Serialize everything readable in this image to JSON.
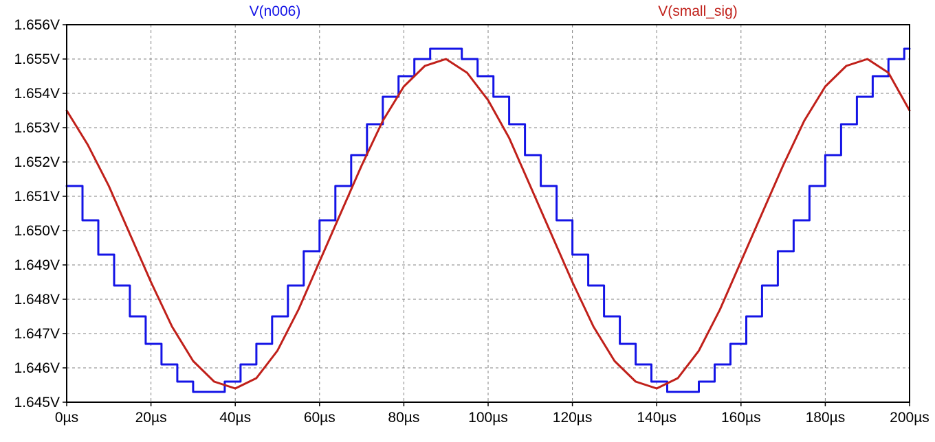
{
  "chart_data": {
    "type": "line",
    "title": "",
    "xlabel": "",
    "ylabel": "",
    "xlim": [
      0,
      200
    ],
    "ylim": [
      1.645,
      1.656
    ],
    "x_unit": "µs",
    "y_unit": "V",
    "grid": true,
    "legend_position": "top",
    "x_ticks": [
      "0µs",
      "20µs",
      "40µs",
      "60µs",
      "80µs",
      "100µs",
      "120µs",
      "140µs",
      "160µs",
      "180µs",
      "200µs"
    ],
    "y_ticks": [
      "1.656V",
      "1.655V",
      "1.654V",
      "1.653V",
      "1.652V",
      "1.651V",
      "1.650V",
      "1.649V",
      "1.648V",
      "1.647V",
      "1.646V",
      "1.645V"
    ],
    "series": [
      {
        "name": "V(n006)",
        "color": "#1414e6",
        "step": true,
        "x": [
          0,
          3.75,
          7.5,
          11.25,
          15,
          18.75,
          22.5,
          26.25,
          30,
          33.75,
          37.5,
          41.25,
          45,
          48.75,
          52.5,
          56.25,
          60,
          63.75,
          67.5,
          71.25,
          75,
          78.75,
          82.5,
          86.25,
          90,
          93.75,
          97.5,
          101.25,
          105,
          108.75,
          112.5,
          116.25,
          120,
          123.75,
          127.5,
          131.25,
          135,
          138.75,
          142.5,
          146.25,
          150,
          153.75,
          157.5,
          161.25,
          165,
          168.75,
          172.5,
          176.25,
          180,
          183.75,
          187.5,
          191.25,
          195,
          198.75,
          200
        ],
        "y": [
          1.6513,
          1.6503,
          1.6493,
          1.6484,
          1.6475,
          1.6467,
          1.6461,
          1.6456,
          1.6453,
          1.6453,
          1.6456,
          1.6461,
          1.6467,
          1.6475,
          1.6484,
          1.6494,
          1.6503,
          1.6513,
          1.6522,
          1.6531,
          1.6539,
          1.6545,
          1.655,
          1.6553,
          1.6553,
          1.655,
          1.6545,
          1.6539,
          1.6531,
          1.6522,
          1.6513,
          1.6503,
          1.6493,
          1.6484,
          1.6475,
          1.6467,
          1.6461,
          1.6456,
          1.6453,
          1.6453,
          1.6456,
          1.6461,
          1.6467,
          1.6475,
          1.6484,
          1.6494,
          1.6503,
          1.6513,
          1.6522,
          1.6531,
          1.6539,
          1.6545,
          1.655,
          1.6553,
          1.6553
        ]
      },
      {
        "name": "V(small_sig)",
        "color": "#c0201a",
        "step": false,
        "x": [
          0,
          5,
          10,
          15,
          20,
          25,
          30,
          35,
          40,
          45,
          50,
          55,
          60,
          65,
          70,
          75,
          80,
          85,
          90,
          95,
          100,
          105,
          110,
          115,
          120,
          125,
          130,
          135,
          140,
          145,
          150,
          155,
          160,
          165,
          170,
          175,
          180,
          185,
          190,
          195,
          200
        ],
        "y": [
          1.6535,
          1.6525,
          1.6513,
          1.6499,
          1.6485,
          1.6472,
          1.6462,
          1.6456,
          1.6454,
          1.6457,
          1.6465,
          1.6477,
          1.6491,
          1.6505,
          1.6519,
          1.6532,
          1.6542,
          1.6548,
          1.655,
          1.6546,
          1.6538,
          1.6527,
          1.6513,
          1.6499,
          1.6485,
          1.6472,
          1.6462,
          1.6456,
          1.6454,
          1.6457,
          1.6465,
          1.6477,
          1.6491,
          1.6505,
          1.6519,
          1.6532,
          1.6542,
          1.6548,
          1.655,
          1.6546,
          1.6535
        ]
      }
    ]
  }
}
